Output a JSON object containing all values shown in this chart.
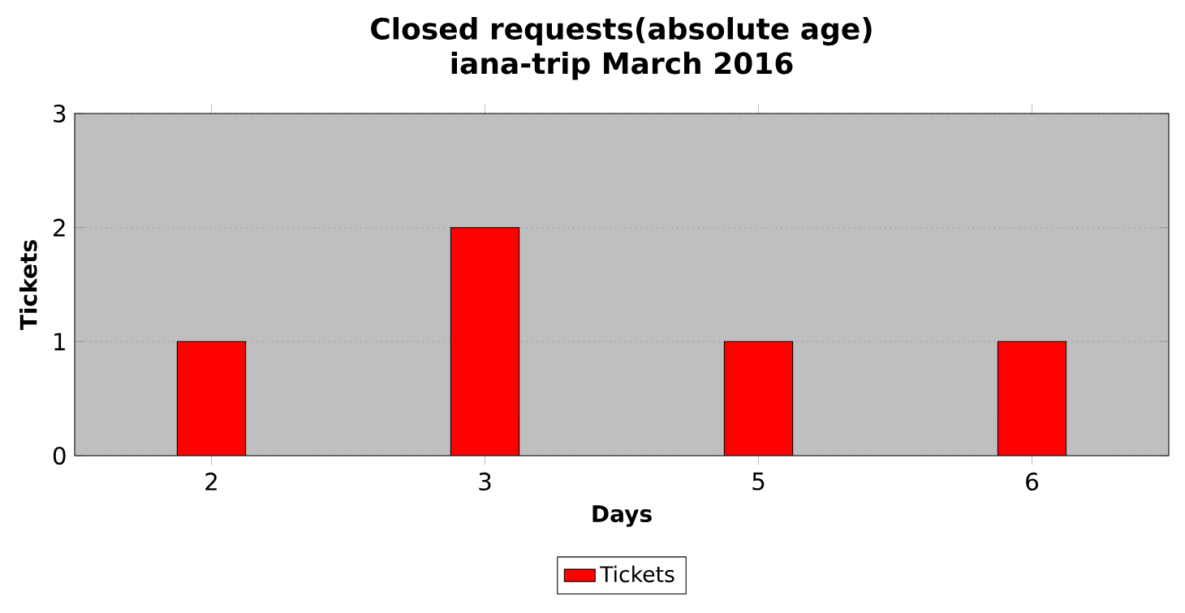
{
  "chart_data": {
    "type": "bar",
    "title": "Closed requests(absolute age)",
    "subtitle": "iana-trip March 2016",
    "xlabel": "Days",
    "ylabel": "Tickets",
    "categories": [
      "2",
      "3",
      "5",
      "6"
    ],
    "series": [
      {
        "name": "Tickets",
        "color": "#ff0000",
        "values": [
          1,
          2,
          1,
          1
        ]
      }
    ],
    "ylim": [
      0,
      3
    ],
    "yticks": [
      0,
      1,
      2,
      3
    ],
    "grid": "y",
    "legend": "bottom"
  }
}
